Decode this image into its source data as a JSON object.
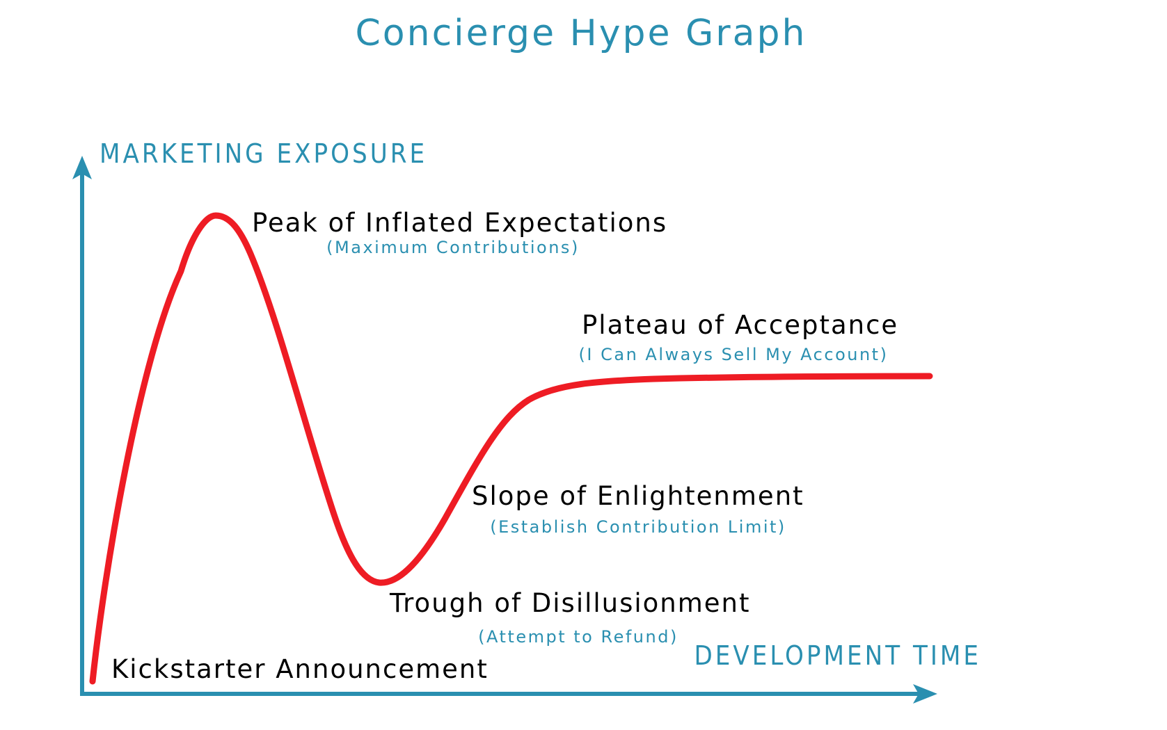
{
  "title": "Concierge Hype Graph",
  "axes": {
    "y_label": "MARKETING EXPOSURE",
    "x_label": "DEVELOPMENT TIME"
  },
  "phases": [
    {
      "label": "Kickstarter Announcement",
      "sublabel": ""
    },
    {
      "label": "Peak of Inflated Expectations",
      "sublabel": "(Maximum Contributions)"
    },
    {
      "label": "Trough of Disillusionment",
      "sublabel": "(Attempt to Refund)"
    },
    {
      "label": "Slope of Enlightenment",
      "sublabel": "(Establish Contribution Limit)"
    },
    {
      "label": "Plateau of Acceptance",
      "sublabel": "(I Can Always Sell My Account)"
    }
  ],
  "colors": {
    "accent": "#2a8fb0",
    "curve": "#ee1c24",
    "text": "#000000",
    "axis": "#2a8fb0"
  },
  "icons": {
    "y_axis_arrow": "arrow-up-icon",
    "x_axis_arrow": "arrow-right-icon"
  }
}
